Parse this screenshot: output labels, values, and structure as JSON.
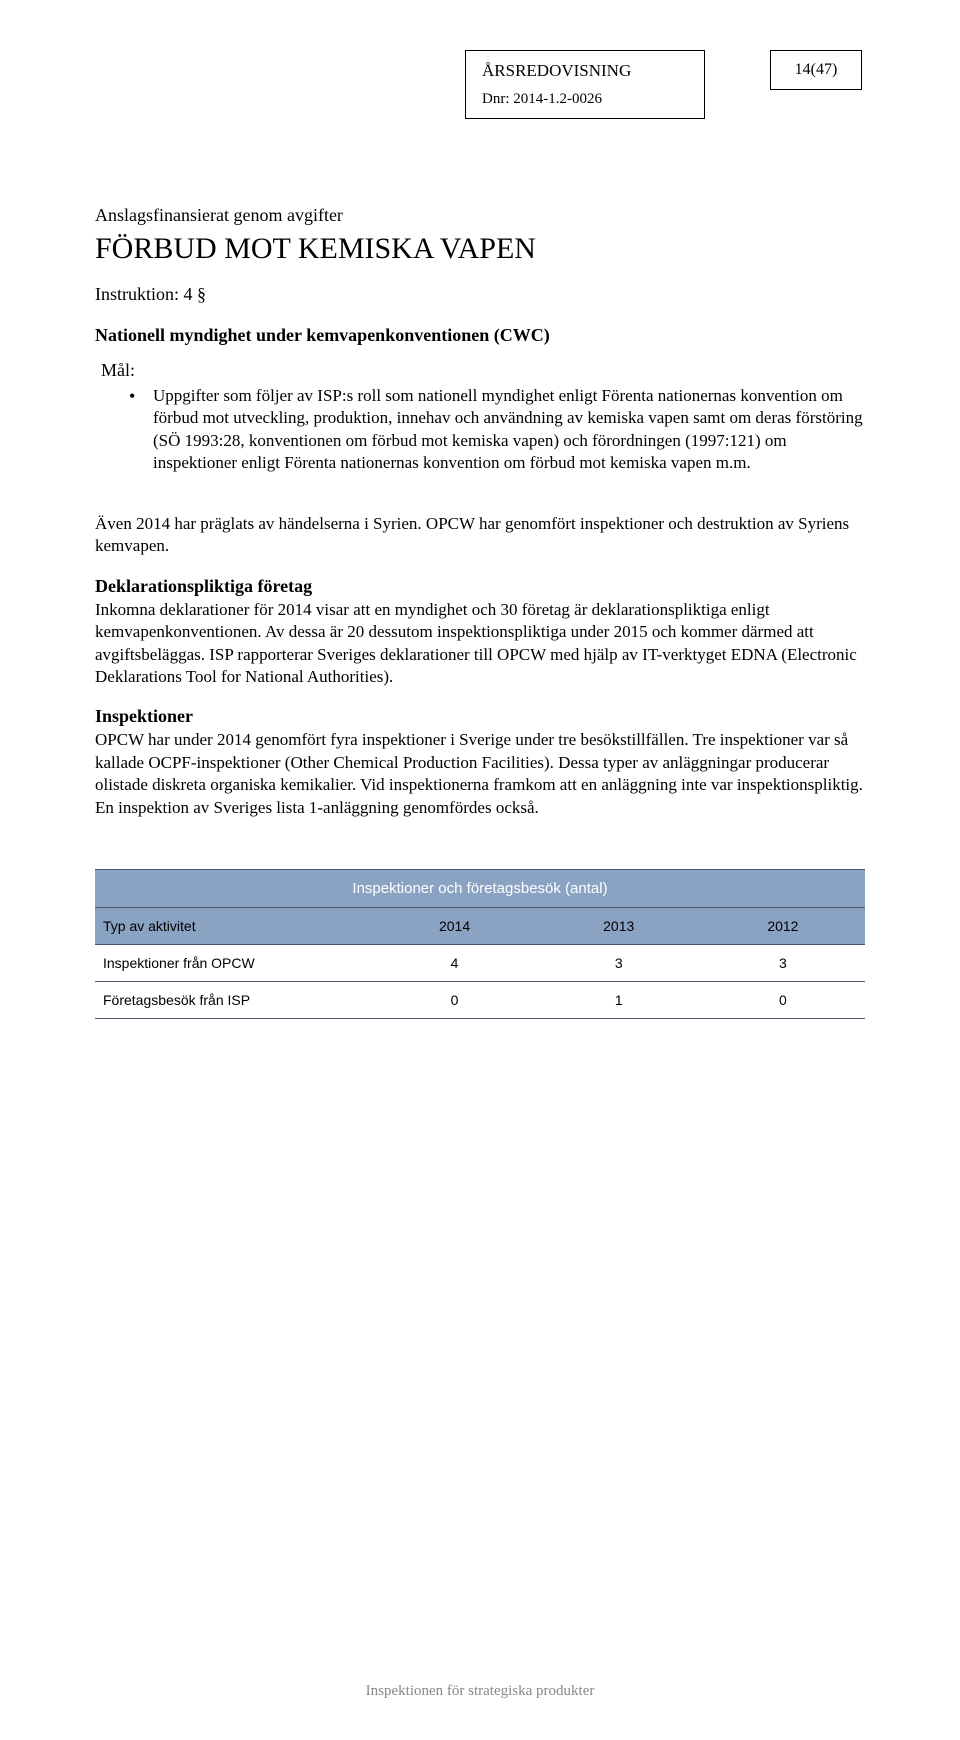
{
  "header": {
    "title": "ÅRSREDOVISNING",
    "dnr": "Dnr: 2014-1.2-0026",
    "page_number": "14(47)"
  },
  "content": {
    "financing": "Anslagsfinansierat genom avgifter",
    "main_title": "FÖRBUD MOT KEMISKA VAPEN",
    "instruction": "Instruktion: 4 §",
    "section_heading": "Nationell myndighet under kemvapenkonventionen (CWC)",
    "goal_label": "Mål:",
    "goal_text": "Uppgifter som följer av ISP:s roll som nationell myndighet enligt Förenta nationernas konvention om förbud mot utveckling, produktion, innehav och användning av kemiska vapen samt om deras förstöring (SÖ 1993:28, konventionen om förbud mot kemiska vapen) och förordningen (1997:121) om inspektioner enligt Förenta nationernas konvention om förbud mot kemiska vapen m.m.",
    "syria_para": "Även 2014 har präglats av händelserna i Syrien. OPCW har genomfört inspektioner och destruktion av Syriens kemvapen.",
    "deklaration_heading": "Deklarationspliktiga företag",
    "deklaration_para": "Inkomna deklarationer för 2014 visar att en myndighet och 30 företag är deklarationspliktiga enligt kemvapenkonventionen. Av dessa är 20 dessutom inspektionspliktiga under 2015 och kommer därmed att avgiftsbeläggas. ISP rapporterar Sveriges deklarationer till OPCW med hjälp av IT-verktyget EDNA (Electronic Deklarations Tool for National Authorities).",
    "inspektioner_heading": "Inspektioner",
    "inspektioner_para": "OPCW har under 2014 genomfört fyra inspektioner i Sverige under tre besökstillfällen. Tre inspektioner var så kallade OCPF-inspektioner (Other Chemical Production Facilities). Dessa typer av anläggningar producerar olistade diskreta organiska kemikalier. Vid inspektionerna framkom att en anläggning inte var inspektionspliktig. En inspektion av Sveriges lista 1-anläggning genomfördes också."
  },
  "table": {
    "title": "Inspektioner och företagsbesök (antal)",
    "header_label": "Typ av aktivitet",
    "columns": [
      "2014",
      "2013",
      "2012"
    ],
    "rows": [
      {
        "label": "Inspektioner från OPCW",
        "values": [
          "4",
          "3",
          "3"
        ]
      },
      {
        "label": "Företagsbesök från ISP",
        "values": [
          "0",
          "1",
          "0"
        ]
      }
    ],
    "colors": {
      "header_bg": "#8ba3c3",
      "header_text": "#ffffff",
      "border": "#4a5a6e"
    }
  },
  "footer": {
    "text": "Inspektionen för strategiska produkter"
  }
}
